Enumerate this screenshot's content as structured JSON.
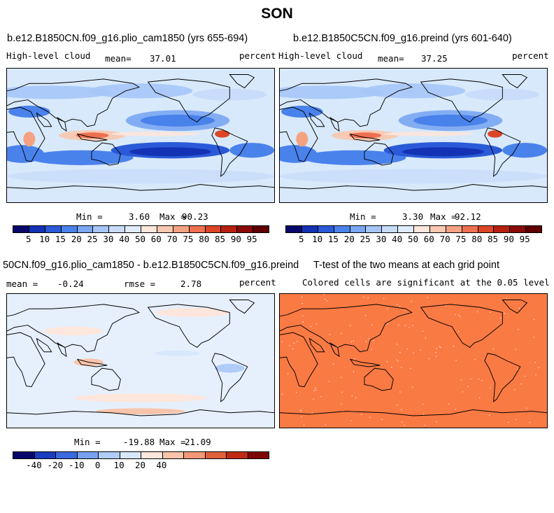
{
  "title": "SON",
  "panels": [
    {
      "title": "b.e12.B1850CN.f09_g16.plio_cam1850 (yrs 655-694)",
      "left_label": "High-level cloud",
      "mean_label": "mean=",
      "mean_value": "37.01",
      "units": "percent",
      "min_label": "Min =",
      "min_value": "3.60",
      "max_label": "Max =",
      "max_value": "90.23"
    },
    {
      "title": "b.e12.B1850C5CN.f09_g16.preind (yrs 601-640)",
      "left_label": "High-level cloud",
      "mean_label": "mean=",
      "mean_value": "37.25",
      "units": "percent",
      "min_label": "Min =",
      "min_value": "3.30",
      "max_label": "Max =",
      "max_value": "92.12"
    },
    {
      "title": "50CN.f09_g16.plio_cam1850 - b.e12.B1850C5CN.f09_g16.preind",
      "mean_label": "mean =",
      "mean_value": "-0.24",
      "rmse_label": "rmse =",
      "rmse_value": "2.78",
      "units": "percent",
      "min_label": "Min =",
      "min_value": "-19.88",
      "max_label": "Max =",
      "max_value": "21.09"
    },
    {
      "title": "T-test of the two means at each grid point",
      "subtitle": "Colored cells are significant at the 0.05 level"
    }
  ],
  "colorbars": {
    "absolute": {
      "labels": [
        "5",
        "10",
        "15",
        "20",
        "25",
        "30",
        "40",
        "50",
        "60",
        "70",
        "75",
        "80",
        "85",
        "90",
        "95"
      ],
      "colors": [
        "#08086b",
        "#1432b4",
        "#2a5ad8",
        "#4a82ec",
        "#7aa6f2",
        "#a6c6f8",
        "#c8dcfa",
        "#e0ecfc",
        "#fde6dc",
        "#f9c8b0",
        "#f5a282",
        "#ee7050",
        "#dc4626",
        "#b82010",
        "#8a0a0a",
        "#600000"
      ]
    },
    "difference": {
      "labels": [
        "-40",
        "-20",
        "-10",
        "0",
        "10",
        "20",
        "40"
      ],
      "colors": [
        "#08086b",
        "#1a3cc0",
        "#3a6ae0",
        "#78a2f0",
        "#b0ccf8",
        "#d8e8fc",
        "#fde6dc",
        "#f8c4aa",
        "#f29878",
        "#e0603a",
        "#c02a14",
        "#800606"
      ]
    }
  },
  "colors": {
    "ttest_fill": "#fa7a44",
    "coast": "#000000"
  }
}
